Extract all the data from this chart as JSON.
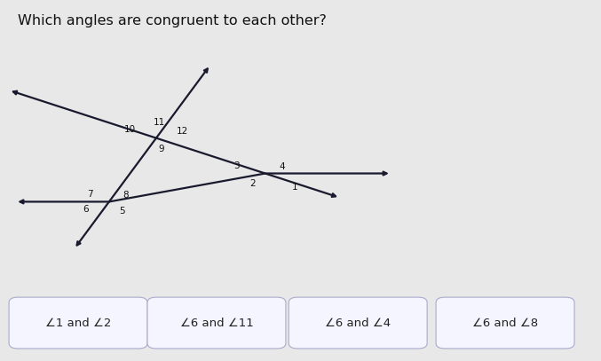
{
  "title": "Which angles are congruent to each other?",
  "title_fontsize": 11.5,
  "title_color": "#111111",
  "background_color": "#e8e8e8",
  "line_color": "#1a1a2e",
  "line_width": 1.6,
  "button_bg": "#f5f5ff",
  "button_border": "#aaaacc",
  "figsize": [
    6.77,
    4.07
  ],
  "dpi": 100,
  "P1": [
    0.255,
    0.62
  ],
  "P2": [
    0.175,
    0.44
  ],
  "P3": [
    0.44,
    0.52
  ],
  "angle_sign": "∠",
  "button_labels": [
    "⇁1 and ⇁2",
    "⇁6 and ⇁11",
    "⇁6 and ⇁4",
    "⇁6 and ⇁8"
  ]
}
